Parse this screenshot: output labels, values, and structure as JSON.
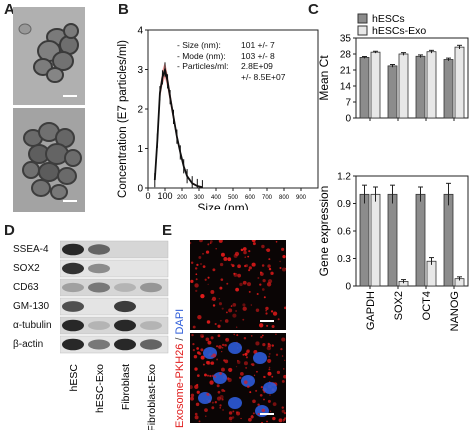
{
  "panels": {
    "a": "A",
    "b": "B",
    "c": "C",
    "d": "D",
    "e": "E"
  },
  "nta": {
    "ylabel": "Concentration (E7 particles/ml)",
    "xlabel": "Size (nm)",
    "stats": [
      {
        "label": "- Size (nm):",
        "value": "101 +/- 7"
      },
      {
        "label": "- Mode (nm):",
        "value": "103 +/- 8"
      },
      {
        "label": "- Particles/ml:",
        "value": "2.8E+09"
      },
      {
        "label": "",
        "value": "+/- 8.5E+07"
      }
    ]
  },
  "western": {
    "rows": [
      "SSEA-4",
      "SOX2",
      "CD63",
      "GM-130",
      "α-tubulin",
      "β-actin"
    ],
    "columns": [
      "hESC",
      "hESC-Exo",
      "Fibroblast",
      "Fibroblast-Exo"
    ]
  },
  "fluorescence": {
    "label_red": "Exosome-PKH26",
    "label_sep": " / ",
    "label_blue": "DAPI"
  },
  "colors": {
    "hESCs": "#8c8c8c",
    "hESCs-Exo": "#e8e8e8",
    "pkh26": "#e01a1a",
    "dapi": "#2c5bd8"
  },
  "chart_data": [
    {
      "type": "line",
      "title": "",
      "xlabel": "Size (nm)",
      "ylabel": "Concentration (E7 particles/ml)",
      "xlim": [
        0,
        1000
      ],
      "ylim": [
        0,
        4
      ],
      "xticks": [
        0,
        100,
        200,
        300,
        400,
        500,
        600,
        700,
        800,
        900
      ],
      "yticks": [
        0,
        1,
        2,
        3,
        4
      ],
      "series": [
        {
          "x": [
            40,
            55,
            70,
            85,
            100,
            115,
            130,
            150,
            170,
            190,
            210,
            230,
            260,
            290,
            320
          ],
          "y": [
            0.2,
            1.2,
            2.4,
            2.8,
            3.0,
            2.7,
            2.3,
            1.8,
            1.3,
            0.9,
            0.55,
            0.3,
            0.12,
            0.05,
            0.02
          ]
        }
      ]
    },
    {
      "type": "bar",
      "title": "",
      "ylabel": "Mean Ct",
      "categories": [
        "GAPDH",
        "SOX2",
        "OCT4",
        "NANOG"
      ],
      "ylim": [
        0,
        35
      ],
      "yticks": [
        0,
        7,
        14,
        21,
        28,
        35
      ],
      "legend": "top-right",
      "series": [
        {
          "name": "hESCs",
          "values": [
            26.5,
            22.8,
            27.0,
            25.6
          ],
          "errors": [
            0.4,
            0.6,
            0.6,
            0.6
          ]
        },
        {
          "name": "hESCs-Exo",
          "values": [
            28.8,
            28.0,
            29.0,
            31.0
          ],
          "errors": [
            0.4,
            0.6,
            0.6,
            0.8
          ]
        }
      ]
    },
    {
      "type": "bar",
      "title": "",
      "ylabel": "Gene expression",
      "categories": [
        "GAPDH",
        "SOX2",
        "OCT4",
        "NANOG"
      ],
      "ylim": [
        0,
        1.2
      ],
      "yticks": [
        0,
        0.3,
        0.6,
        0.9,
        1.2
      ],
      "series": [
        {
          "name": "hESCs",
          "values": [
            1.0,
            1.0,
            1.0,
            1.0
          ],
          "errors": [
            0.1,
            0.1,
            0.08,
            0.12
          ]
        },
        {
          "name": "hESCs-Exo",
          "values": [
            1.0,
            0.05,
            0.27,
            0.08
          ],
          "errors": [
            0.08,
            0.02,
            0.04,
            0.02
          ]
        }
      ]
    }
  ]
}
